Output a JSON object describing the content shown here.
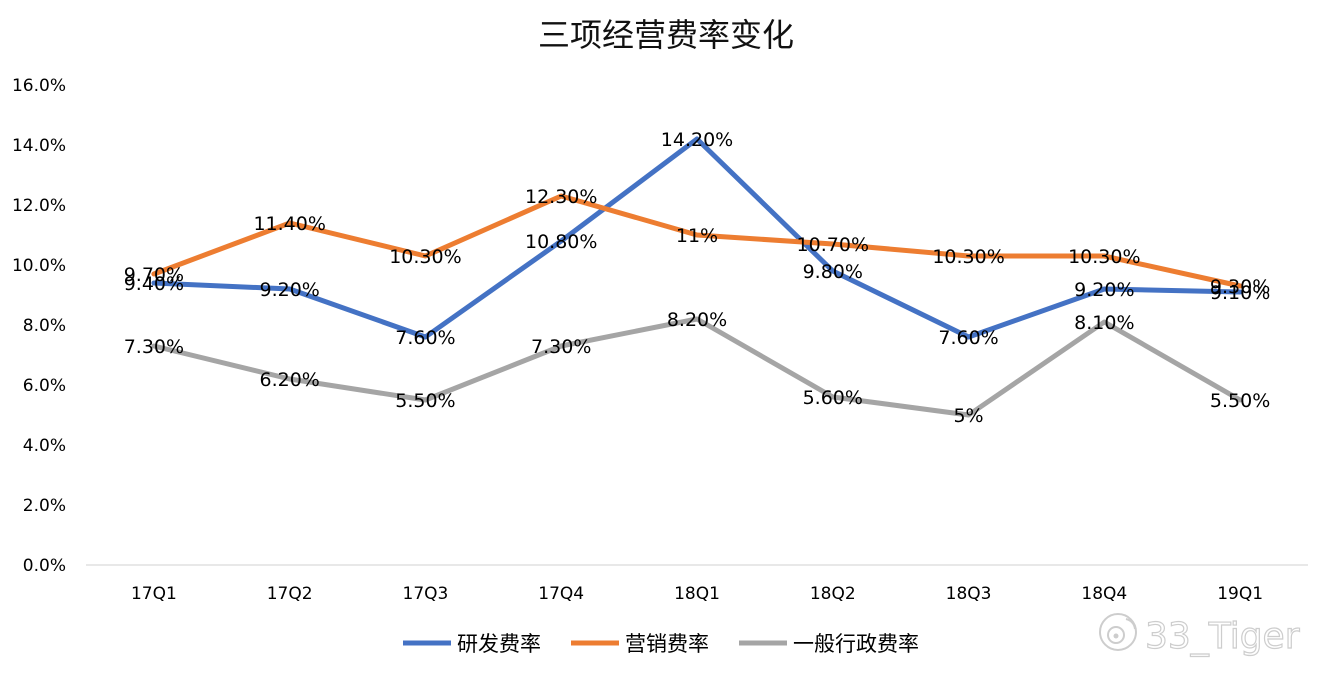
{
  "chart_data": {
    "type": "line",
    "title": "三项经营费率变化",
    "categories": [
      "17Q1",
      "17Q2",
      "17Q3",
      "17Q4",
      "18Q1",
      "18Q2",
      "18Q3",
      "18Q4",
      "19Q1"
    ],
    "ylim": [
      0,
      16
    ],
    "yticks": [
      "0.0%",
      "2.0%",
      "4.0%",
      "6.0%",
      "8.0%",
      "10.0%",
      "12.0%",
      "14.0%",
      "16.0%"
    ],
    "grid": false,
    "legend_position": "bottom",
    "series": [
      {
        "name": "研发费率",
        "color": "#4472C4",
        "values": [
          9.4,
          9.2,
          7.6,
          10.8,
          14.2,
          9.8,
          7.6,
          9.2,
          9.1
        ],
        "labels": [
          "9.40%",
          "9.20%",
          "7.60%",
          "10.80%",
          "14.20%",
          "9.80%",
          "7.60%",
          "9.20%",
          "9.10%"
        ]
      },
      {
        "name": "营销费率",
        "color": "#ED7D31",
        "values": [
          9.7,
          11.4,
          10.3,
          12.3,
          11.0,
          10.7,
          10.3,
          10.3,
          9.3
        ],
        "labels": [
          "9.70%",
          "11.40%",
          "10.30%",
          "12.30%",
          "11%",
          "10.70%",
          "10.30%",
          "10.30%",
          "9.30%"
        ]
      },
      {
        "name": "一般行政费率",
        "color": "#A5A5A5",
        "values": [
          7.3,
          6.2,
          5.5,
          7.3,
          8.2,
          5.6,
          5.0,
          8.1,
          5.5
        ],
        "labels": [
          "7.30%",
          "6.20%",
          "5.50%",
          "7.30%",
          "8.20%",
          "5.60%",
          "5%",
          "8.10%",
          "5.50%"
        ]
      }
    ]
  },
  "watermark": {
    "text": "33_Tiger",
    "icon": "weibo-logo-icon"
  }
}
